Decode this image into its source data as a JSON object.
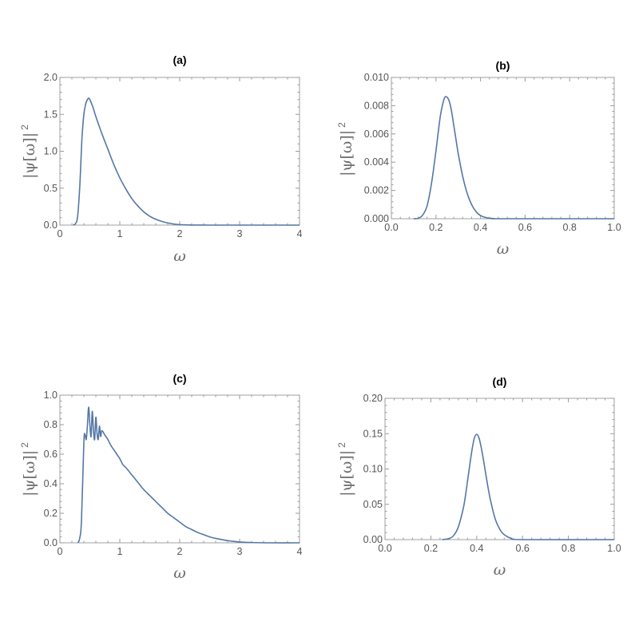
{
  "chart_data": [
    {
      "id": "a",
      "type": "line",
      "title": "(a)",
      "ylabel": "|ψ[ω]|",
      "ylabel_sup": "2",
      "xlabel": "ω",
      "xlim": [
        0,
        4
      ],
      "ylim": [
        0,
        2.0
      ],
      "xticks": [
        0,
        1,
        2,
        3,
        4
      ],
      "xtick_labels": [
        "0",
        "1",
        "2",
        "3",
        "4"
      ],
      "yticks": [
        0,
        0.5,
        1.0,
        1.5,
        2.0
      ],
      "ytick_labels": [
        "0.0",
        "0.5",
        "1.0",
        "1.5",
        "2.0"
      ],
      "color": "#5477a6",
      "x": [
        0.22,
        0.25,
        0.28,
        0.3,
        0.33,
        0.35,
        0.37,
        0.4,
        0.43,
        0.46,
        0.48,
        0.5,
        0.55,
        0.6,
        0.7,
        0.8,
        0.9,
        1.0,
        1.1,
        1.2,
        1.3,
        1.4,
        1.5,
        1.6,
        1.7,
        1.8,
        1.9,
        2.0,
        2.2,
        2.5,
        3.0,
        4.0
      ],
      "y": [
        0.0,
        0.01,
        0.05,
        0.15,
        0.5,
        0.85,
        1.2,
        1.5,
        1.64,
        1.7,
        1.72,
        1.7,
        1.6,
        1.47,
        1.24,
        1.03,
        0.82,
        0.64,
        0.49,
        0.36,
        0.26,
        0.18,
        0.12,
        0.08,
        0.05,
        0.03,
        0.015,
        0.006,
        0.001,
        0.0,
        0.0,
        0.0
      ]
    },
    {
      "id": "b",
      "type": "line",
      "title": "(b)",
      "ylabel": "|ψ[ω]|",
      "ylabel_sup": "2",
      "xlabel": "ω",
      "xlim": [
        0,
        1.0
      ],
      "ylim": [
        0,
        0.01
      ],
      "xticks": [
        0,
        0.2,
        0.4,
        0.6,
        0.8,
        1.0
      ],
      "xtick_labels": [
        "0.0",
        "0.2",
        "0.4",
        "0.6",
        "0.8",
        "1.0"
      ],
      "yticks": [
        0,
        0.002,
        0.004,
        0.006,
        0.008,
        0.01
      ],
      "ytick_labels": [
        "0.000",
        "0.002",
        "0.004",
        "0.006",
        "0.008",
        "0.010"
      ],
      "color": "#5477a6",
      "x": [
        0.1,
        0.12,
        0.14,
        0.16,
        0.18,
        0.2,
        0.21,
        0.22,
        0.23,
        0.24,
        0.25,
        0.26,
        0.27,
        0.28,
        0.29,
        0.3,
        0.32,
        0.34,
        0.36,
        0.38,
        0.4,
        0.43,
        0.46,
        0.5,
        1.0
      ],
      "y": [
        0.0,
        3e-05,
        0.00025,
        0.0009,
        0.0025,
        0.0048,
        0.0061,
        0.0073,
        0.0081,
        0.0086,
        0.0086,
        0.0083,
        0.0076,
        0.0066,
        0.0056,
        0.0046,
        0.003,
        0.0018,
        0.001,
        0.0005,
        0.00022,
        6e-05,
        1e-05,
        0.0,
        0.0
      ]
    },
    {
      "id": "c",
      "type": "line",
      "title": "(c)",
      "ylabel": "|ψ[ω]|",
      "ylabel_sup": "2",
      "xlabel": "ω",
      "xlim": [
        0,
        4
      ],
      "ylim": [
        0,
        1.0
      ],
      "xticks": [
        0,
        1,
        2,
        3,
        4
      ],
      "xtick_labels": [
        "0",
        "1",
        "2",
        "3",
        "4"
      ],
      "yticks": [
        0,
        0.2,
        0.4,
        0.6,
        0.8,
        1.0
      ],
      "ytick_labels": [
        "0.0",
        "0.2",
        "0.4",
        "0.6",
        "0.8",
        "1.0"
      ],
      "color": "#5477a6",
      "x": [
        0.3,
        0.33,
        0.36,
        0.4,
        0.42,
        0.44,
        0.46,
        0.48,
        0.5,
        0.52,
        0.54,
        0.56,
        0.58,
        0.6,
        0.62,
        0.64,
        0.66,
        0.68,
        0.7,
        0.75,
        0.8,
        0.85,
        0.9,
        0.95,
        1.0,
        1.05,
        1.1,
        1.2,
        1.3,
        1.4,
        1.5,
        1.6,
        1.7,
        1.8,
        1.9,
        2.0,
        2.1,
        2.2,
        2.3,
        2.4,
        2.5,
        2.6,
        2.7,
        2.8,
        2.9,
        3.0,
        3.2,
        3.5,
        4.0
      ],
      "y": [
        0.0,
        0.03,
        0.15,
        0.68,
        0.73,
        0.7,
        0.8,
        0.92,
        0.8,
        0.72,
        0.89,
        0.76,
        0.7,
        0.85,
        0.74,
        0.7,
        0.79,
        0.72,
        0.76,
        0.73,
        0.7,
        0.66,
        0.63,
        0.6,
        0.57,
        0.53,
        0.51,
        0.46,
        0.41,
        0.36,
        0.32,
        0.28,
        0.24,
        0.2,
        0.17,
        0.14,
        0.11,
        0.09,
        0.07,
        0.055,
        0.04,
        0.03,
        0.022,
        0.015,
        0.01,
        0.006,
        0.002,
        0.0,
        0.0
      ]
    },
    {
      "id": "d",
      "type": "line",
      "title": "(d)",
      "ylabel": "|ψ[ω]|",
      "ylabel_sup": "2",
      "xlabel": "ω",
      "xlim": [
        0,
        1.0
      ],
      "ylim": [
        0,
        0.2
      ],
      "xticks": [
        0,
        0.2,
        0.4,
        0.6,
        0.8,
        1.0
      ],
      "xtick_labels": [
        "0.0",
        "0.2",
        "0.4",
        "0.6",
        "0.8",
        "1.0"
      ],
      "yticks": [
        0,
        0.05,
        0.1,
        0.15,
        0.2
      ],
      "ytick_labels": [
        "0.00",
        "0.05",
        "0.10",
        "0.15",
        "0.20"
      ],
      "color": "#5477a6",
      "x": [
        0.25,
        0.28,
        0.3,
        0.32,
        0.34,
        0.35,
        0.36,
        0.37,
        0.38,
        0.39,
        0.4,
        0.41,
        0.42,
        0.43,
        0.44,
        0.45,
        0.46,
        0.48,
        0.5,
        0.52,
        0.55,
        0.6,
        1.0
      ],
      "y": [
        0.0,
        0.0015,
        0.006,
        0.018,
        0.042,
        0.06,
        0.083,
        0.106,
        0.128,
        0.144,
        0.149,
        0.144,
        0.13,
        0.112,
        0.092,
        0.073,
        0.056,
        0.03,
        0.015,
        0.007,
        0.002,
        0.0,
        0.0
      ]
    }
  ]
}
